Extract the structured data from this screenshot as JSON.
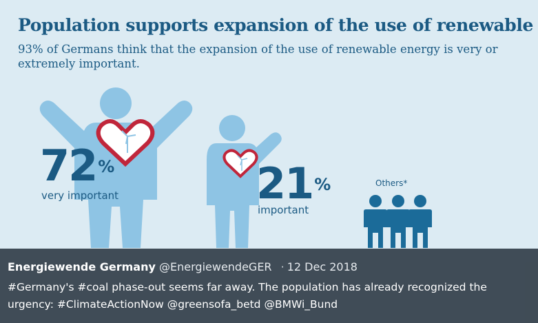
{
  "infographic": {
    "title": "Population supports expansion of the use of renewable energy",
    "subtitle": "93% of Germans think that the expansion of the use of renewable energy is very or extremely important.",
    "groups": [
      {
        "percent": "72",
        "percent_sign": "%",
        "label": "very important"
      },
      {
        "percent": "21",
        "percent_sign": "%",
        "label": "important"
      },
      {
        "label": "Others*"
      }
    ],
    "colors": {
      "background": "#dcebf3",
      "figure_light": "#8ec4e4",
      "figure_dark": "#1b6b99",
      "heart": "#c0263b",
      "text": "#1b5a83"
    }
  },
  "tweet": {
    "author": "Energiewende Germany",
    "handle": "@EnergiewendeGER",
    "separator": "·",
    "date": "12 Dec 2018",
    "text": "#Germany's #coal phase-out seems far away. The population has already recognized the urgency: #ClimateActionNow @greensofa_betd @BMWi_Bund"
  }
}
